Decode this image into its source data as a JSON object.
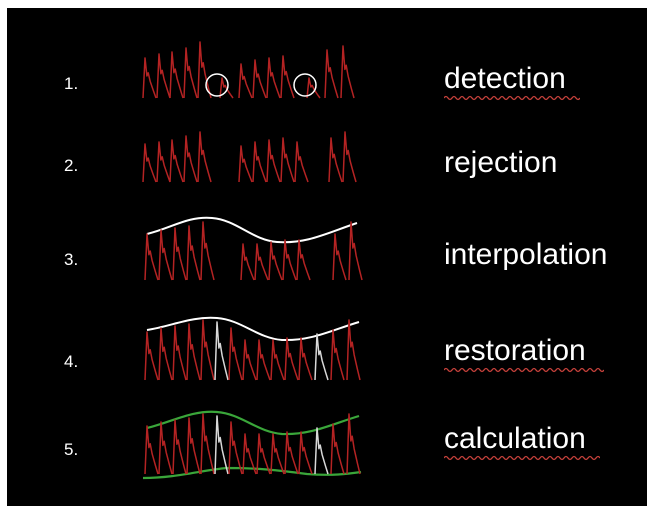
{
  "colors": {
    "background": "#000000",
    "waveform": "#b42323",
    "envelope": "#ffffff",
    "restored": "#d8d8d8",
    "lower_envelope": "#3aa63a",
    "spellcheck_underline": "#c8423c"
  },
  "steps": [
    {
      "number": "1.",
      "label": "detection",
      "spellcheck_underline": true
    },
    {
      "number": "2.",
      "label": "rejection",
      "spellcheck_underline": false
    },
    {
      "number": "3.",
      "label": "interpolation",
      "spellcheck_underline": false
    },
    {
      "number": "4.",
      "label": "restoration",
      "spellcheck_underline": true
    },
    {
      "number": "5.",
      "label": "calculation",
      "spellcheck_underline": true
    }
  ]
}
